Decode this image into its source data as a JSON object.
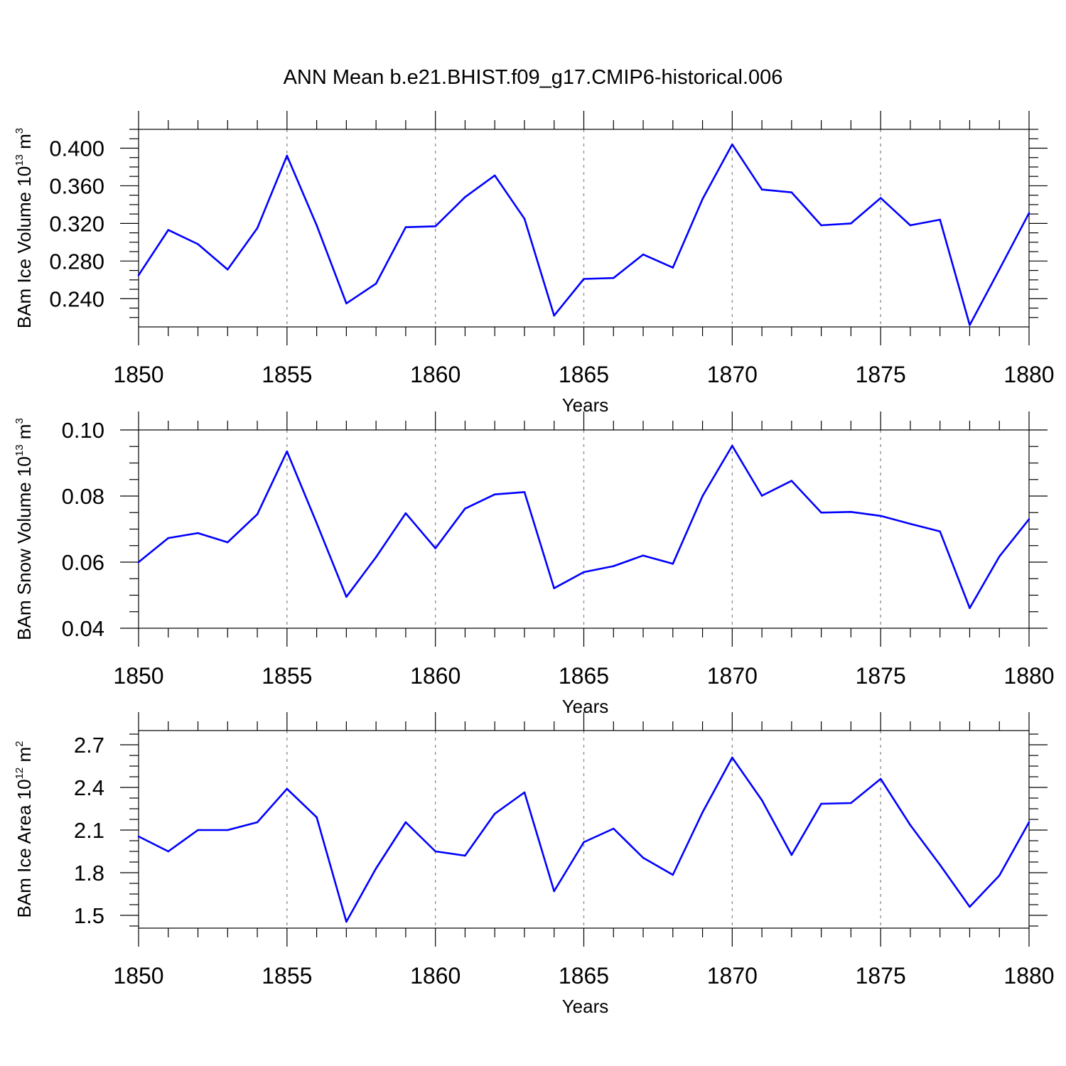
{
  "title": "ANN Mean b.e21.BHIST.f09_g17.CMIP6-historical.006",
  "colors": {
    "series": "#0000ff",
    "axis": "#000000",
    "grid": "#8a8a8a"
  },
  "chart_data": [
    {
      "type": "line",
      "ylabel": {
        "text": "BAm Ice Volume 10",
        "exp": "13",
        "unit": " m",
        "unit_exp": "3"
      },
      "xlabel": "Years",
      "xlim": [
        1850,
        1880
      ],
      "ylim": [
        0.21,
        0.42
      ],
      "yticks": [
        0.24,
        0.28,
        0.32,
        0.36,
        0.4
      ],
      "ytick_labels": [
        "0.240",
        "0.280",
        "0.320",
        "0.360",
        "0.400"
      ],
      "xticks": [
        1850,
        1855,
        1860,
        1865,
        1870,
        1875,
        1880
      ],
      "grid": "vertical dashed at major x ticks",
      "x": [
        1850,
        1851,
        1852,
        1853,
        1854,
        1855,
        1856,
        1857,
        1858,
        1859,
        1860,
        1861,
        1862,
        1863,
        1864,
        1865,
        1866,
        1867,
        1868,
        1869,
        1870,
        1871,
        1872,
        1873,
        1874,
        1875,
        1876,
        1877,
        1878,
        1879,
        1880
      ],
      "values": [
        0.265,
        0.313,
        0.298,
        0.271,
        0.315,
        0.392,
        0.318,
        0.235,
        0.256,
        0.316,
        0.317,
        0.348,
        0.371,
        0.325,
        0.222,
        0.261,
        0.262,
        0.287,
        0.273,
        0.346,
        0.404,
        0.356,
        0.353,
        0.318,
        0.32,
        0.347,
        0.318,
        0.324,
        0.212,
        0.271,
        0.331
      ]
    },
    {
      "type": "line",
      "ylabel": {
        "text": "BAm Snow Volume 10",
        "exp": "13",
        "unit": " m",
        "unit_exp": "3"
      },
      "xlabel": "Years",
      "xlim": [
        1850,
        1880
      ],
      "ylim": [
        0.04,
        0.1
      ],
      "yticks": [
        0.04,
        0.06,
        0.08,
        0.1
      ],
      "ytick_labels": [
        "0.04",
        "0.06",
        "0.08",
        "0.10"
      ],
      "xticks": [
        1850,
        1855,
        1860,
        1865,
        1870,
        1875,
        1880
      ],
      "grid": "vertical dashed at major x ticks",
      "x": [
        1850,
        1851,
        1852,
        1853,
        1854,
        1855,
        1856,
        1857,
        1858,
        1859,
        1860,
        1861,
        1862,
        1863,
        1864,
        1865,
        1866,
        1867,
        1868,
        1869,
        1870,
        1871,
        1872,
        1873,
        1874,
        1875,
        1876,
        1877,
        1878,
        1879,
        1880
      ],
      "values": [
        0.06,
        0.0673,
        0.0688,
        0.066,
        0.0745,
        0.0935,
        0.0718,
        0.0495,
        0.0615,
        0.0748,
        0.0642,
        0.0762,
        0.0805,
        0.0812,
        0.0521,
        0.057,
        0.0588,
        0.062,
        0.0595,
        0.08,
        0.0952,
        0.0801,
        0.0846,
        0.075,
        0.0752,
        0.074,
        0.0716,
        0.0693,
        0.0461,
        0.0617,
        0.073
      ]
    },
    {
      "type": "line",
      "ylabel": {
        "text": "BAm Ice Area 10",
        "exp": "12",
        "unit": " m",
        "unit_exp": "2"
      },
      "xlabel": "Years",
      "xlim": [
        1850,
        1880
      ],
      "ylim": [
        1.41,
        2.8
      ],
      "yticks": [
        1.5,
        1.8,
        2.1,
        2.4,
        2.7
      ],
      "ytick_labels": [
        "1.5",
        "1.8",
        "2.1",
        "2.4",
        "2.7"
      ],
      "xticks": [
        1850,
        1855,
        1860,
        1865,
        1870,
        1875,
        1880
      ],
      "grid": "vertical dashed at major x ticks",
      "x": [
        1850,
        1851,
        1852,
        1853,
        1854,
        1855,
        1856,
        1857,
        1858,
        1859,
        1860,
        1861,
        1862,
        1863,
        1864,
        1865,
        1866,
        1867,
        1868,
        1869,
        1870,
        1871,
        1872,
        1873,
        1874,
        1875,
        1876,
        1877,
        1878,
        1879,
        1880
      ],
      "values": [
        2.055,
        1.95,
        2.1,
        2.1,
        2.155,
        2.39,
        2.19,
        1.455,
        1.83,
        2.155,
        1.95,
        1.92,
        2.215,
        2.365,
        1.67,
        2.015,
        2.11,
        1.905,
        1.785,
        2.225,
        2.61,
        2.31,
        1.925,
        2.285,
        2.29,
        2.46,
        2.135,
        1.855,
        1.56,
        1.78,
        2.155
      ]
    }
  ]
}
